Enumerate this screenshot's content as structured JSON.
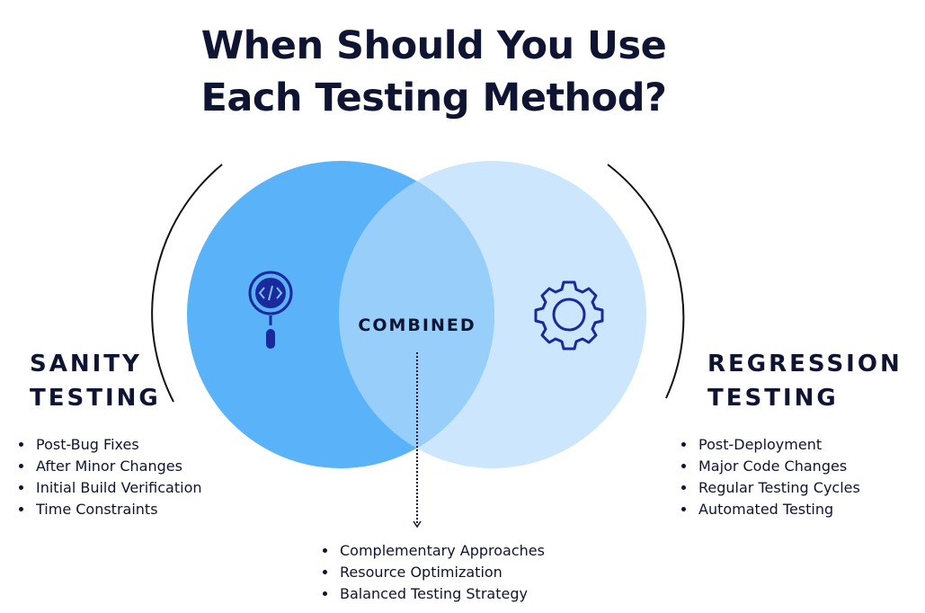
{
  "title_line1": "When Should You Use",
  "title_line2": "Each Testing Method?",
  "left": {
    "heading_line1": "SANITY",
    "heading_line2": "TESTING",
    "icon": "code-magnifier-icon",
    "items": [
      "Post-Bug Fixes",
      "After Minor Changes",
      "Initial Build Verification",
      "Time Constraints"
    ]
  },
  "right": {
    "heading_line1": "REGRESSION",
    "heading_line2": "TESTING",
    "icon": "gear-icon",
    "items": [
      "Post-Deployment",
      "Major Code Changes",
      "Regular Testing Cycles",
      "Automated Testing"
    ]
  },
  "center": {
    "label": "COMBINED",
    "items": [
      "Complementary Approaches",
      "Resource Optimization",
      "Balanced Testing Strategy"
    ]
  },
  "colors": {
    "left_circle": "#5ab3f8",
    "right_circle": "#cbe6fd",
    "overlap": "#98cefa",
    "icon": "#1a2a9c",
    "text": "#0f1433"
  }
}
